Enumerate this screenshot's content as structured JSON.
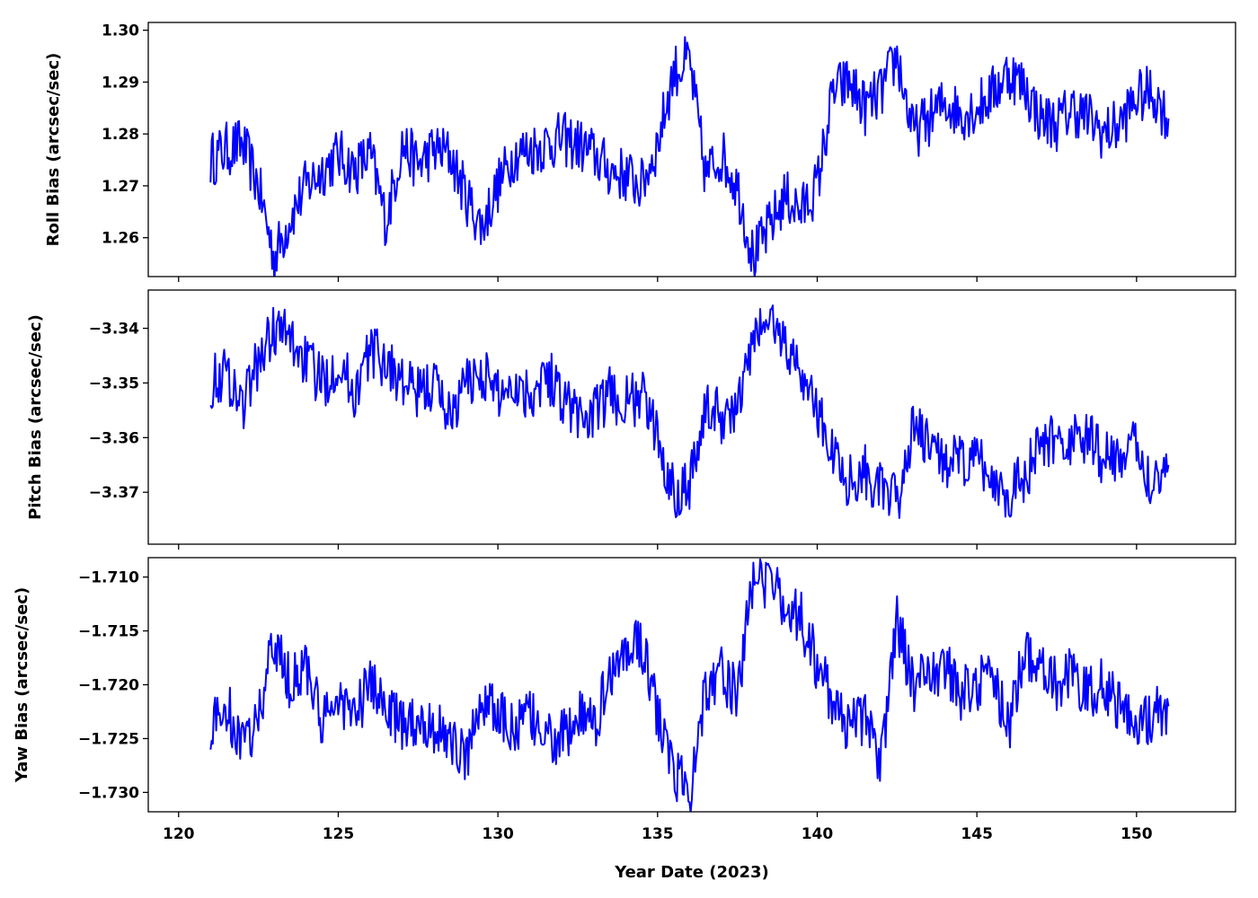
{
  "chart_data": {
    "type": "line",
    "line_color": "#0000ff",
    "xlabel": "Year Date (2023)",
    "x_ticks": [
      120,
      125,
      130,
      135,
      140,
      145,
      150
    ],
    "x_tick_labels": [
      "120",
      "125",
      "130",
      "135",
      "140",
      "145",
      "150"
    ],
    "xlim": [
      119.05,
      153.1
    ],
    "grid": false,
    "panels": [
      {
        "id": "roll",
        "ylabel": "Roll Bias (arcsec/sec)",
        "ylim": [
          1.2525,
          1.3015
        ],
        "y_ticks": [
          1.26,
          1.27,
          1.28,
          1.29,
          1.3
        ],
        "y_tick_labels": [
          "1.26",
          "1.27",
          "1.28",
          "1.29",
          "1.30"
        ],
        "series": {
          "x": [
            121.0,
            121.5,
            122.0,
            122.5,
            123.0,
            123.5,
            124.0,
            124.5,
            125.0,
            125.5,
            126.0,
            126.5,
            127.0,
            127.5,
            128.0,
            128.5,
            129.0,
            129.5,
            130.0,
            130.5,
            131.0,
            131.5,
            132.0,
            132.5,
            133.0,
            133.5,
            134.0,
            134.5,
            135.0,
            135.5,
            136.0,
            136.5,
            137.0,
            137.5,
            138.0,
            138.5,
            139.0,
            139.5,
            140.0,
            140.5,
            141.0,
            141.5,
            142.0,
            142.5,
            143.0,
            143.5,
            144.0,
            144.5,
            145.0,
            145.5,
            146.0,
            146.5,
            147.0,
            147.5,
            148.0,
            148.5,
            149.0,
            149.5,
            150.0,
            150.5,
            151.0
          ],
          "y": [
            1.275,
            1.277,
            1.278,
            1.27,
            1.256,
            1.264,
            1.27,
            1.273,
            1.276,
            1.273,
            1.276,
            1.263,
            1.278,
            1.274,
            1.277,
            1.276,
            1.268,
            1.262,
            1.27,
            1.276,
            1.277,
            1.278,
            1.279,
            1.278,
            1.276,
            1.273,
            1.272,
            1.27,
            1.278,
            1.292,
            1.294,
            1.272,
            1.276,
            1.27,
            1.256,
            1.262,
            1.268,
            1.265,
            1.27,
            1.288,
            1.29,
            1.285,
            1.288,
            1.295,
            1.28,
            1.283,
            1.286,
            1.284,
            1.285,
            1.288,
            1.292,
            1.289,
            1.283,
            1.282,
            1.285,
            1.283,
            1.28,
            1.282,
            1.287,
            1.288,
            1.283
          ]
        }
      },
      {
        "id": "pitch",
        "ylabel": "Pitch Bias (arcsec/sec)",
        "ylim": [
          -3.3795,
          -3.333
        ],
        "y_ticks": [
          -3.37,
          -3.36,
          -3.35,
          -3.34
        ],
        "y_tick_labels": [
          "−3.37",
          "−3.36",
          "−3.35",
          "−3.34"
        ],
        "series": {
          "x": [
            121.0,
            121.5,
            122.0,
            122.5,
            123.0,
            123.5,
            124.0,
            124.5,
            125.0,
            125.5,
            126.0,
            126.5,
            127.0,
            127.5,
            128.0,
            128.5,
            129.0,
            129.5,
            130.0,
            130.5,
            131.0,
            131.5,
            132.0,
            132.5,
            133.0,
            133.5,
            134.0,
            134.5,
            135.0,
            135.5,
            136.0,
            136.5,
            137.0,
            137.5,
            138.0,
            138.5,
            139.0,
            139.5,
            140.0,
            140.5,
            141.0,
            141.5,
            142.0,
            142.5,
            143.0,
            143.5,
            144.0,
            144.5,
            145.0,
            145.5,
            146.0,
            146.5,
            147.0,
            147.5,
            148.0,
            148.5,
            149.0,
            149.5,
            150.0,
            150.5,
            151.0
          ],
          "y": [
            -3.35,
            -3.348,
            -3.354,
            -3.346,
            -3.34,
            -3.342,
            -3.346,
            -3.35,
            -3.346,
            -3.352,
            -3.344,
            -3.346,
            -3.35,
            -3.352,
            -3.35,
            -3.356,
            -3.35,
            -3.348,
            -3.352,
            -3.35,
            -3.352,
            -3.348,
            -3.352,
            -3.356,
            -3.356,
            -3.352,
            -3.354,
            -3.352,
            -3.36,
            -3.37,
            -3.368,
            -3.355,
            -3.356,
            -3.355,
            -3.342,
            -3.338,
            -3.343,
            -3.348,
            -3.355,
            -3.363,
            -3.368,
            -3.366,
            -3.37,
            -3.372,
            -3.358,
            -3.362,
            -3.364,
            -3.365,
            -3.364,
            -3.368,
            -3.37,
            -3.367,
            -3.362,
            -3.36,
            -3.361,
            -3.36,
            -3.364,
            -3.363,
            -3.362,
            -3.368,
            -3.365
          ]
        }
      },
      {
        "id": "yaw",
        "ylabel": "Yaw Bias (arcsec/sec)",
        "ylim": [
          -1.7318,
          -1.7082
        ],
        "y_ticks": [
          -1.73,
          -1.725,
          -1.72,
          -1.715,
          -1.71
        ],
        "y_tick_labels": [
          "−1.730",
          "−1.725",
          "−1.720",
          "−1.715",
          "−1.710"
        ],
        "series": {
          "x": [
            121.0,
            121.5,
            122.0,
            122.5,
            123.0,
            123.5,
            124.0,
            124.5,
            125.0,
            125.5,
            126.0,
            126.5,
            127.0,
            127.5,
            128.0,
            128.5,
            129.0,
            129.5,
            130.0,
            130.5,
            131.0,
            131.5,
            132.0,
            132.5,
            133.0,
            133.5,
            134.0,
            134.5,
            135.0,
            135.5,
            136.0,
            136.5,
            137.0,
            137.5,
            138.0,
            138.5,
            139.0,
            139.5,
            140.0,
            140.5,
            141.0,
            141.5,
            142.0,
            142.5,
            143.0,
            143.5,
            144.0,
            144.5,
            145.0,
            145.5,
            146.0,
            146.5,
            147.0,
            147.5,
            148.0,
            148.5,
            149.0,
            149.5,
            150.0,
            150.5,
            151.0
          ],
          "y": [
            -1.724,
            -1.722,
            -1.726,
            -1.723,
            -1.716,
            -1.72,
            -1.718,
            -1.724,
            -1.721,
            -1.723,
            -1.72,
            -1.722,
            -1.724,
            -1.723,
            -1.724,
            -1.725,
            -1.727,
            -1.721,
            -1.723,
            -1.724,
            -1.723,
            -1.725,
            -1.725,
            -1.723,
            -1.724,
            -1.719,
            -1.717,
            -1.716,
            -1.723,
            -1.728,
            -1.73,
            -1.72,
            -1.719,
            -1.721,
            -1.71,
            -1.711,
            -1.712,
            -1.714,
            -1.718,
            -1.722,
            -1.724,
            -1.723,
            -1.727,
            -1.714,
            -1.72,
            -1.719,
            -1.718,
            -1.721,
            -1.72,
            -1.719,
            -1.724,
            -1.717,
            -1.718,
            -1.72,
            -1.719,
            -1.721,
            -1.72,
            -1.722,
            -1.723,
            -1.723,
            -1.722
          ]
        }
      }
    ]
  }
}
